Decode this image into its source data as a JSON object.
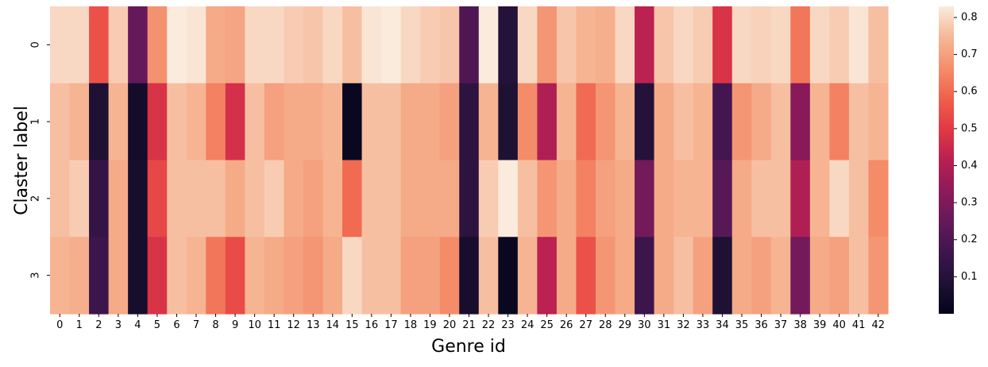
{
  "chart_data": {
    "type": "heatmap",
    "title": "",
    "xlabel": "Genre id",
    "ylabel": "Claster label",
    "x_categories": [
      "0",
      "1",
      "2",
      "3",
      "4",
      "5",
      "6",
      "7",
      "8",
      "9",
      "10",
      "11",
      "12",
      "13",
      "14",
      "15",
      "16",
      "17",
      "18",
      "19",
      "20",
      "21",
      "22",
      "23",
      "24",
      "25",
      "26",
      "27",
      "28",
      "29",
      "30",
      "31",
      "32",
      "33",
      "34",
      "35",
      "36",
      "37",
      "38",
      "39",
      "40",
      "41",
      "42"
    ],
    "y_categories": [
      "0",
      "1",
      "2",
      "3"
    ],
    "values": [
      [
        0.8,
        0.8,
        0.55,
        0.78,
        0.25,
        0.67,
        0.83,
        0.82,
        0.72,
        0.71,
        0.8,
        0.8,
        0.78,
        0.77,
        0.8,
        0.76,
        0.82,
        0.83,
        0.8,
        0.78,
        0.77,
        0.2,
        0.83,
        0.1,
        0.8,
        0.68,
        0.77,
        0.74,
        0.73,
        0.8,
        0.42,
        0.77,
        0.8,
        0.78,
        0.48,
        0.8,
        0.79,
        0.8,
        0.62,
        0.8,
        0.78,
        0.82,
        0.76
      ],
      [
        0.76,
        0.74,
        0.08,
        0.74,
        0.05,
        0.48,
        0.76,
        0.74,
        0.64,
        0.47,
        0.76,
        0.7,
        0.72,
        0.72,
        0.74,
        0.02,
        0.76,
        0.76,
        0.72,
        0.72,
        0.7,
        0.12,
        0.74,
        0.08,
        0.66,
        0.4,
        0.74,
        0.6,
        0.68,
        0.74,
        0.1,
        0.72,
        0.76,
        0.74,
        0.18,
        0.68,
        0.72,
        0.76,
        0.32,
        0.74,
        0.64,
        0.76,
        0.74
      ],
      [
        0.76,
        0.78,
        0.14,
        0.72,
        0.06,
        0.53,
        0.76,
        0.76,
        0.76,
        0.72,
        0.76,
        0.78,
        0.72,
        0.7,
        0.74,
        0.6,
        0.76,
        0.76,
        0.72,
        0.72,
        0.72,
        0.12,
        0.78,
        0.83,
        0.76,
        0.68,
        0.72,
        0.64,
        0.7,
        0.72,
        0.28,
        0.72,
        0.74,
        0.74,
        0.22,
        0.72,
        0.76,
        0.76,
        0.4,
        0.74,
        0.8,
        0.76,
        0.66
      ],
      [
        0.74,
        0.73,
        0.16,
        0.72,
        0.06,
        0.48,
        0.76,
        0.74,
        0.62,
        0.54,
        0.74,
        0.72,
        0.7,
        0.68,
        0.72,
        0.8,
        0.76,
        0.76,
        0.7,
        0.7,
        0.66,
        0.06,
        0.76,
        0.02,
        0.74,
        0.42,
        0.72,
        0.55,
        0.68,
        0.72,
        0.16,
        0.72,
        0.76,
        0.7,
        0.08,
        0.72,
        0.7,
        0.74,
        0.28,
        0.72,
        0.7,
        0.76,
        0.68
      ]
    ],
    "colorbar": {
      "min": 0.0,
      "max": 0.83,
      "ticks": [
        "0.1",
        "0.2",
        "0.3",
        "0.4",
        "0.5",
        "0.6",
        "0.7",
        "0.8"
      ]
    },
    "colormap": "rocket",
    "grid": false
  }
}
